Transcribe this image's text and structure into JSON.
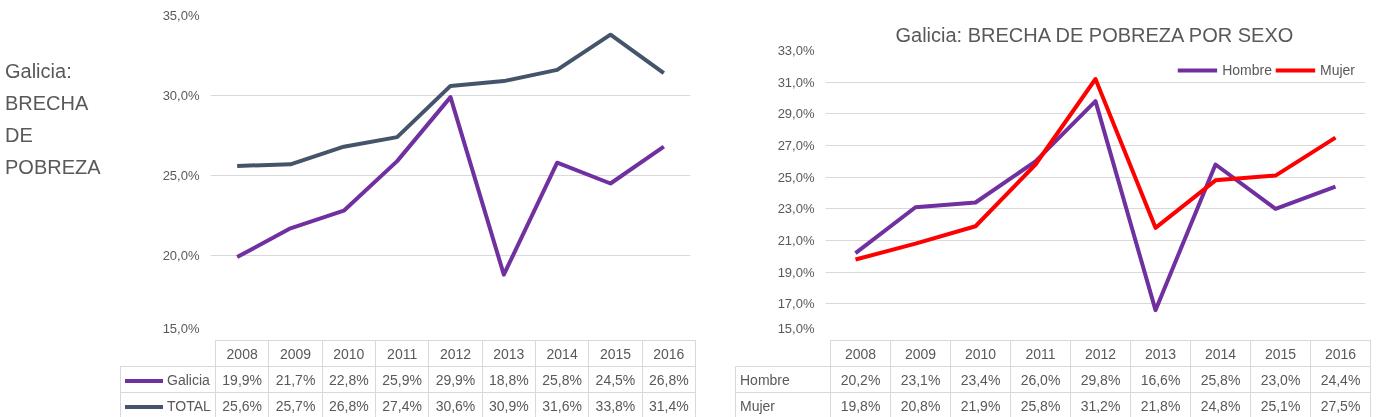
{
  "chart_data": [
    {
      "type": "line",
      "title": "Galicia: BRECHA DE POBREZA",
      "categories": [
        "2008",
        "2009",
        "2010",
        "2011",
        "2012",
        "2013",
        "2014",
        "2015",
        "2016"
      ],
      "series": [
        {
          "name": "Galicia",
          "color": "#7030a0",
          "values": [
            19.9,
            21.7,
            22.8,
            25.9,
            29.9,
            18.8,
            25.8,
            24.5,
            26.8
          ],
          "value_labels": [
            "19,9%",
            "21,7%",
            "22,8%",
            "25,9%",
            "29,9%",
            "18,8%",
            "25,8%",
            "24,5%",
            "26,8%"
          ]
        },
        {
          "name": "TOTAL",
          "color": "#44546a",
          "values": [
            25.6,
            25.7,
            26.8,
            27.4,
            30.6,
            30.9,
            31.6,
            33.8,
            31.4
          ],
          "value_labels": [
            "25,6%",
            "25,7%",
            "26,8%",
            "27,4%",
            "30,6%",
            "30,9%",
            "31,6%",
            "33,8%",
            "31,4%"
          ]
        }
      ],
      "ylim": [
        15,
        35
      ],
      "yticks": [
        {
          "value": 15,
          "label": "15,0%"
        },
        {
          "value": 20,
          "label": "20,0%"
        },
        {
          "value": 25,
          "label": "25,0%"
        },
        {
          "value": 30,
          "label": "30,0%"
        },
        {
          "value": 35,
          "label": "35,0%"
        }
      ],
      "grid": "y",
      "legend": "bottom",
      "marker": "none",
      "line_style": "solid"
    },
    {
      "type": "line",
      "title": "Galicia: BRECHA DE POBREZA POR SEXO",
      "categories": [
        "2008",
        "2009",
        "2010",
        "2011",
        "2012",
        "2013",
        "2014",
        "2015",
        "2016"
      ],
      "series": [
        {
          "name": "Hombre",
          "color": "#7030a0",
          "values": [
            20.2,
            23.1,
            23.4,
            26.0,
            29.8,
            16.6,
            25.8,
            23.0,
            24.4
          ],
          "value_labels": [
            "20,2%",
            "23,1%",
            "23,4%",
            "26,0%",
            "29,8%",
            "16,6%",
            "25,8%",
            "23,0%",
            "24,4%"
          ]
        },
        {
          "name": "Mujer",
          "color": "#ff0000",
          "values": [
            19.8,
            20.8,
            21.9,
            25.8,
            31.2,
            21.8,
            24.8,
            25.1,
            27.5
          ],
          "value_labels": [
            "19,8%",
            "20,8%",
            "21,9%",
            "25,8%",
            "31,2%",
            "21,8%",
            "24,8%",
            "25,1%",
            "27,5%"
          ]
        }
      ],
      "ylim": [
        15,
        33
      ],
      "yticks": [
        {
          "value": 15,
          "label": "15,0%"
        },
        {
          "value": 17,
          "label": "17,0%"
        },
        {
          "value": 19,
          "label": "19,0%"
        },
        {
          "value": 21,
          "label": "21,0%"
        },
        {
          "value": 23,
          "label": "23,0%"
        },
        {
          "value": 25,
          "label": "25,0%"
        },
        {
          "value": 27,
          "label": "27,0%"
        },
        {
          "value": 29,
          "label": "29,0%"
        },
        {
          "value": 31,
          "label": "31,0%"
        },
        {
          "value": 33,
          "label": "33,0%"
        }
      ],
      "grid": "y",
      "legend": "top right",
      "marker": "none",
      "line_style": "solid"
    }
  ]
}
